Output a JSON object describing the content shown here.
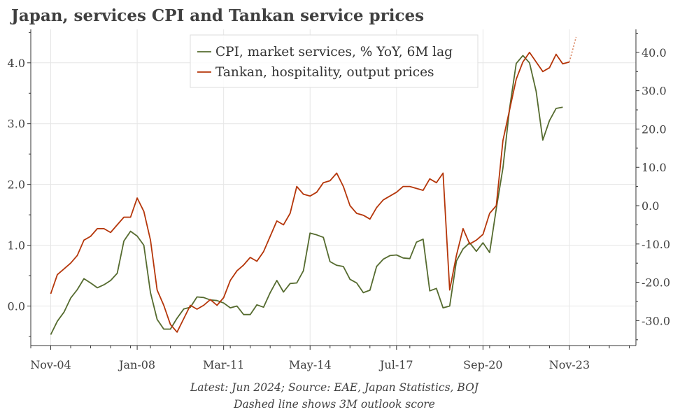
{
  "chart_data": {
    "type": "line",
    "title": "Japan, services CPI and Tankan service prices",
    "x_tick_labels": [
      "Nov-04",
      "Jan-08",
      "Mar-11",
      "May-14",
      "Jul-17",
      "Sep-20",
      "Nov-23"
    ],
    "x_tick_positions": [
      0,
      13,
      26,
      39,
      52,
      65,
      78
    ],
    "x_range": [
      -3,
      88
    ],
    "left_axis": {
      "ylim": [
        -0.65,
        4.55
      ],
      "ticks": [
        0.0,
        1.0,
        2.0,
        3.0,
        4.0
      ],
      "tick_labels": [
        "0.0",
        "1.0",
        "2.0",
        "3.0",
        "4.0"
      ]
    },
    "right_axis": {
      "ylim": [
        -36.5,
        46
      ],
      "ticks": [
        -30,
        -20,
        -10,
        0,
        10,
        20,
        30,
        40
      ],
      "tick_labels": [
        "-30.0",
        "-20.0",
        "-10.0",
        "0.0",
        "10.0",
        "20.0",
        "30.0",
        "40.0"
      ]
    },
    "legend_position": "top-center",
    "series": [
      {
        "name": "CPI, market services, % YoY, 6M lag",
        "axis": "left",
        "color": "#556b2f",
        "x_start": 0,
        "values": [
          -0.47,
          -0.25,
          -0.1,
          0.13,
          0.27,
          0.45,
          0.38,
          0.3,
          0.35,
          0.42,
          0.54,
          1.07,
          1.23,
          1.15,
          1.0,
          0.22,
          -0.22,
          -0.38,
          -0.38,
          -0.2,
          -0.05,
          -0.02,
          0.15,
          0.14,
          0.1,
          0.09,
          0.05,
          -0.03,
          0.0,
          -0.14,
          -0.14,
          0.02,
          -0.02,
          0.22,
          0.42,
          0.23,
          0.37,
          0.38,
          0.58,
          1.2,
          1.17,
          1.13,
          0.73,
          0.67,
          0.65,
          0.44,
          0.38,
          0.22,
          0.26,
          0.65,
          0.77,
          0.83,
          0.84,
          0.79,
          0.78,
          1.05,
          1.1,
          0.25,
          0.29,
          -0.03,
          0.0,
          0.74,
          0.94,
          1.04,
          0.9,
          1.04,
          0.88,
          1.6,
          2.27,
          3.25,
          3.99,
          4.12,
          4.0,
          3.53,
          2.73,
          3.05,
          3.25,
          3.27
        ]
      },
      {
        "name": "Tankan, hospitality, output prices",
        "axis": "right",
        "color": "#b5360a",
        "x_start": 0,
        "values": [
          -23,
          -18,
          -16.5,
          -15,
          -13,
          -9,
          -8,
          -6,
          -6,
          -7,
          -5,
          -3,
          -3,
          2,
          -1.5,
          -9,
          -22,
          -26,
          -31,
          -33,
          -29.5,
          -26,
          -27,
          -26,
          -24.5,
          -26,
          -24,
          -19.5,
          -17,
          -15.5,
          -13.5,
          -14.5,
          -12,
          -8,
          -4,
          -5,
          -2,
          5,
          3,
          2.5,
          3.5,
          6,
          6.5,
          8.5,
          5,
          0,
          -2,
          -2.5,
          -3.5,
          -0.5,
          1.5,
          2.5,
          3.5,
          5,
          5,
          4.5,
          4,
          7,
          6,
          8.5,
          -22,
          -13,
          -6,
          -10,
          -9,
          -7.5,
          -2,
          0,
          17,
          25,
          33,
          37.5,
          40,
          37.5,
          35,
          36,
          39.5,
          37,
          37.5
        ]
      },
      {
        "name": "3M outlook score",
        "axis": "right",
        "color": "#d9845f",
        "dashed": true,
        "x_start": 78,
        "values": [
          37.5,
          44
        ]
      }
    ],
    "notes": [
      "Latest: Jun 2024; Source: EAE, Japan Statistics, BOJ",
      "Dashed line shows 3M outlook score"
    ]
  }
}
